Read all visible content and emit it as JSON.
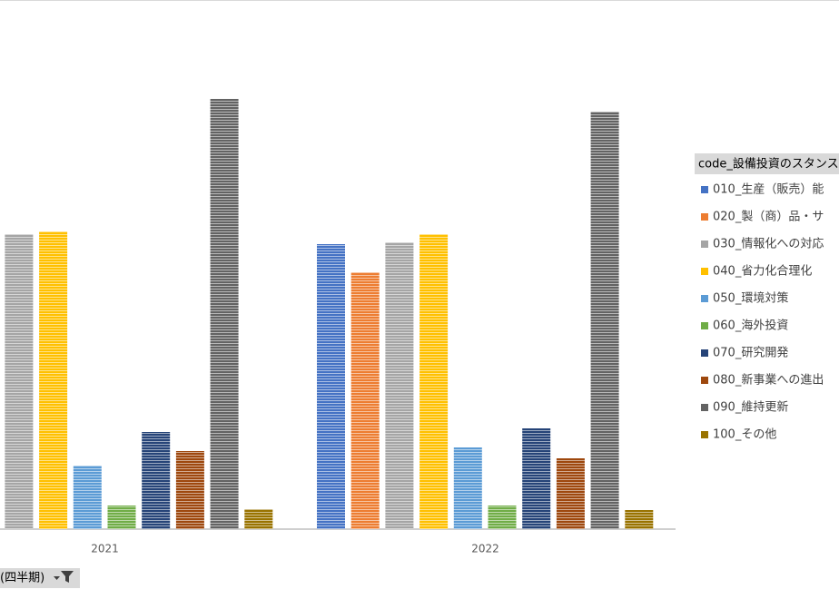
{
  "chart_data": {
    "type": "bar",
    "categories": [
      "2021",
      "2022"
    ],
    "legend_title": "code_設備投資のスタンス",
    "filter_label": "(四半期)",
    "series": [
      {
        "name": "010_生産（販売）能",
        "color": "#4472c4",
        "values": [
          null,
          314
        ]
      },
      {
        "name": "020_製（商）品・サ",
        "color": "#ed7d31",
        "values": [
          null,
          283
        ]
      },
      {
        "name": "030_情報化への対応",
        "color": "#a5a5a5",
        "values": [
          325,
          316
        ]
      },
      {
        "name": "040_省力化合理化",
        "color": "#ffc000",
        "values": [
          328,
          325
        ]
      },
      {
        "name": "050_環境対策",
        "color": "#5b9bd5",
        "values": [
          70,
          90
        ]
      },
      {
        "name": "060_海外投資",
        "color": "#70ad47",
        "values": [
          26,
          26
        ]
      },
      {
        "name": "070_研究開発",
        "color": "#264478",
        "values": [
          107,
          111
        ]
      },
      {
        "name": "080_新事業への進出",
        "color": "#9e480e",
        "values": [
          86,
          78
        ]
      },
      {
        "name": "090_維持更新",
        "color": "#636363",
        "values": [
          474,
          460
        ]
      },
      {
        "name": "100_その他",
        "color": "#997300",
        "values": [
          22,
          21
        ]
      }
    ]
  }
}
